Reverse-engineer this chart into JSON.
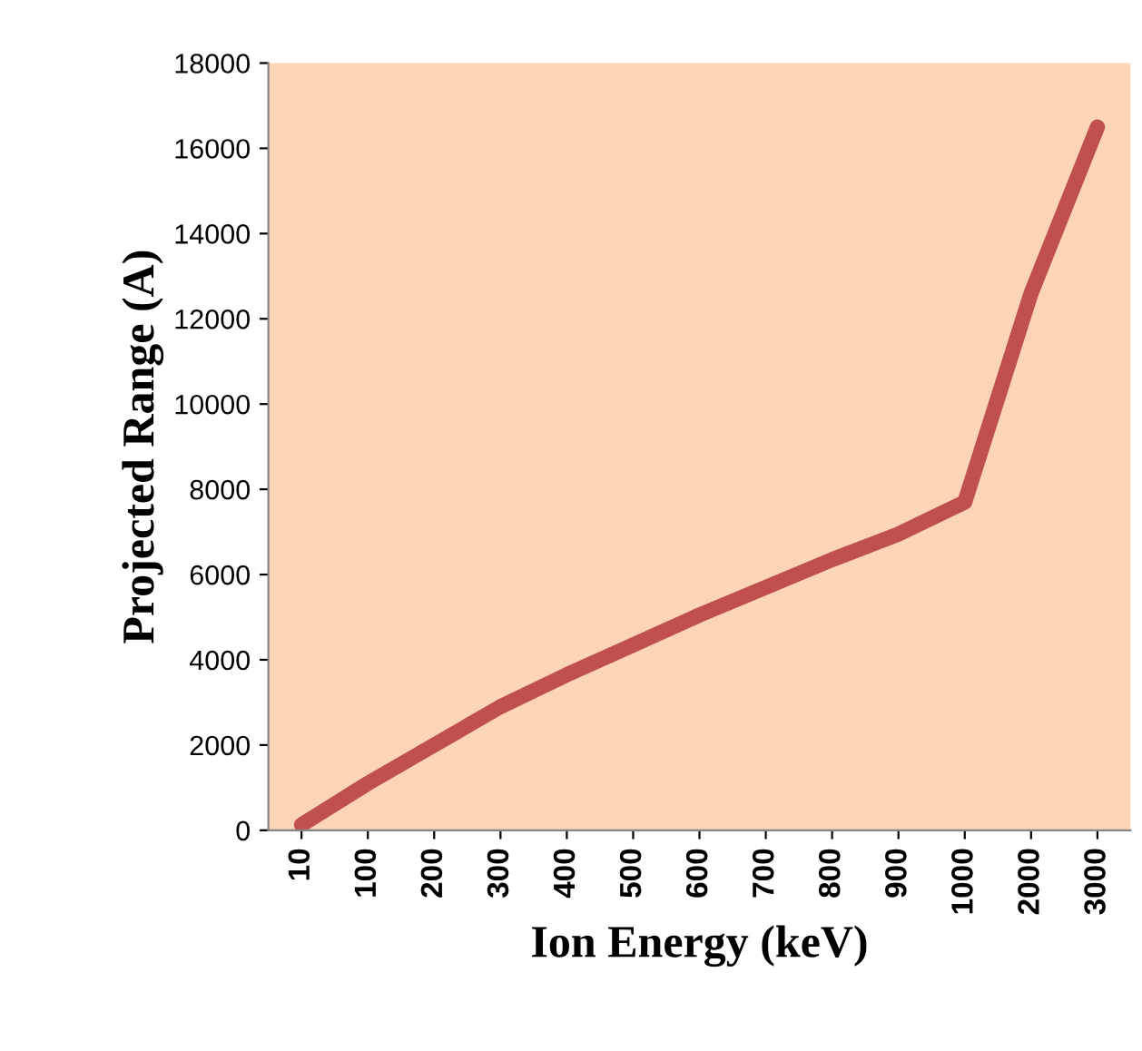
{
  "chart_data": {
    "type": "line",
    "xlabel": "Ion Energy (keV)",
    "ylabel": "Projected Range (A)",
    "categories": [
      "10",
      "100",
      "200",
      "300",
      "400",
      "500",
      "600",
      "700",
      "800",
      "900",
      "1000",
      "2000",
      "3000"
    ],
    "series": [
      {
        "color": "#c0504d",
        "values": [
          130,
          1100,
          2000,
          2900,
          3650,
          4350,
          5050,
          5700,
          6350,
          6950,
          7700,
          12600,
          16500
        ]
      }
    ],
    "ylim": [
      0,
      18000
    ],
    "yticks": [
      0,
      2000,
      4000,
      6000,
      8000,
      10000,
      12000,
      14000,
      16000,
      18000
    ],
    "grid": false,
    "legend": false,
    "marker": "none",
    "line_style": "solid"
  }
}
